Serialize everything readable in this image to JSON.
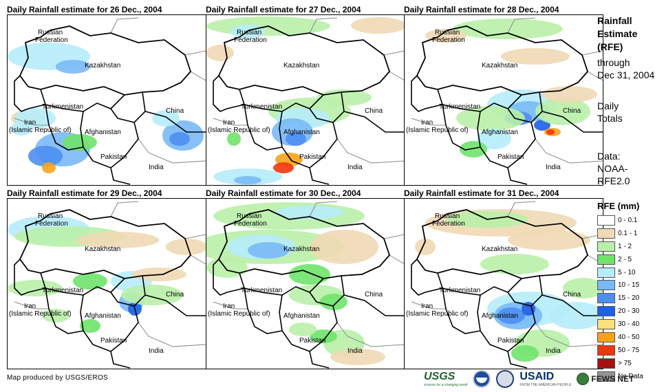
{
  "panels": [
    {
      "title": "Daily Rainfall estimate for 26 Dec., 2004"
    },
    {
      "title": "Daily Rainfall estimate for 27 Dec., 2004"
    },
    {
      "title": "Daily Rainfall estimate for 28 Dec., 2004"
    },
    {
      "title": "Daily Rainfall estimate for 29 Dec., 2004"
    },
    {
      "title": "Daily Rainfall estimate for 30 Dec., 2004"
    },
    {
      "title": "Daily Rainfall estimate for 31 Dec., 2004"
    }
  ],
  "labels": {
    "russia_1": "Russian",
    "russia_2": "Federation",
    "kazakhstan": "Kazakhstan",
    "turkmenistan": "Turkmenistan",
    "china": "China",
    "iran_1": "Iran",
    "iran_2": "(Islamic Republic of)",
    "afghanistan": "Afghanistan",
    "pakistan": "Pakistan",
    "india": "India"
  },
  "legend": {
    "head_1": "Rainfall",
    "head_2": "Estimate",
    "head_3": "(RFE)",
    "through_1": "through",
    "through_2": "Dec 31, 2004",
    "totals_1": "Daily",
    "totals_2": "Totals",
    "data_1": "Data:",
    "data_2": "NOAA-",
    "data_3": "RFE2.0",
    "title": "RFE (mm)",
    "classes": [
      {
        "label": "0 - 0.1",
        "color": "#ffffff"
      },
      {
        "label": "0.1 - 1",
        "color": "#f0d9b4"
      },
      {
        "label": "1 - 2",
        "color": "#b9f0a8"
      },
      {
        "label": "2 - 5",
        "color": "#6fe36a"
      },
      {
        "label": "5 - 10",
        "color": "#b6ecfb"
      },
      {
        "label": "10 - 15",
        "color": "#79b9f6"
      },
      {
        "label": "15 - 20",
        "color": "#4d8ff0"
      },
      {
        "label": "20 - 30",
        "color": "#1d5fe6"
      },
      {
        "label": "30 - 40",
        "color": "#fbe07a"
      },
      {
        "label": "40 - 50",
        "color": "#f7a319"
      },
      {
        "label": "50 - 75",
        "color": "#f0360d"
      },
      {
        "label": "> 75",
        "color": "#a51010"
      },
      {
        "label": "No Data",
        "color": "#959595"
      }
    ]
  },
  "footer": {
    "credit": "Map produced by USGS/EROS",
    "usgs": "USGS",
    "usgs_tagline": "science for a changing world",
    "usaid": "USAID",
    "usaid_tagline": "FROM THE AMERICAN PEOPLE",
    "fews": "FEWS NET"
  }
}
